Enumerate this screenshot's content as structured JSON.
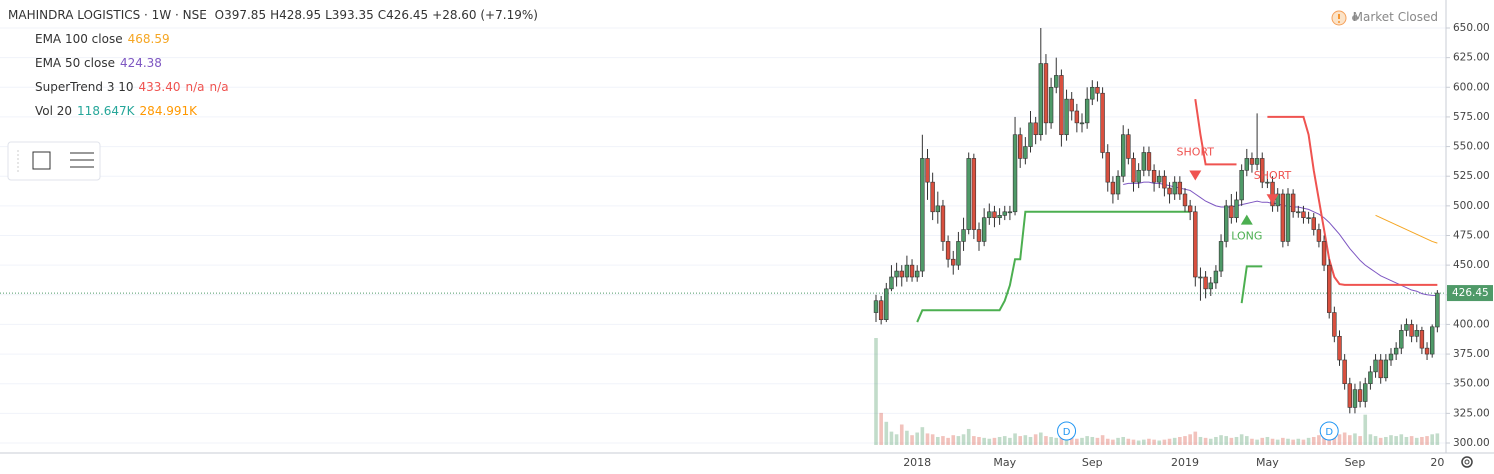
{
  "chart_data": {
    "type": "candlestick",
    "title": "MAHINDRA LOGISTICS · 1W · NSE",
    "ohlc_labels": [
      "O397.85",
      "H428.95",
      "L393.35",
      "C426.45",
      "+28.60 (+7.19%)"
    ],
    "status": "Market Closed",
    "indicators": [
      {
        "name": "EMA 100 close",
        "readings": [
          468.59
        ],
        "color": "#f5a623"
      },
      {
        "name": "EMA 50 close",
        "readings": [
          424.38
        ],
        "color": "#7e57c2"
      },
      {
        "name": "SuperTrend 3 10",
        "readings": [
          {
            "value": 433.4,
            "label": "433.40"
          },
          "n/a",
          "n/a"
        ],
        "color": "#ef5350"
      },
      {
        "name": "Vol 20",
        "readings": [
          "118.647K",
          "284.991K"
        ],
        "colors": [
          "#26a69a",
          "#ff9800"
        ]
      }
    ],
    "up_color": "#4f9a68",
    "down_color": "#d9503f",
    "ylim": [
      300,
      650
    ],
    "yticks": [
      {
        "value": 300,
        "label": "300.00"
      },
      {
        "value": 325,
        "label": "325.00"
      },
      {
        "value": 350,
        "label": "350.00"
      },
      {
        "value": 375,
        "label": "375.00"
      },
      {
        "value": 400,
        "label": "400.00"
      },
      {
        "value": 425,
        "label": "425.00"
      },
      {
        "value": 450,
        "label": "450.00"
      },
      {
        "value": 475,
        "label": "475.00"
      },
      {
        "value": 500,
        "label": "500.00"
      },
      {
        "value": 525,
        "label": "525.00"
      },
      {
        "value": 550,
        "label": "550.00"
      },
      {
        "value": 575,
        "label": "575.00"
      },
      {
        "value": 600,
        "label": "600.00"
      },
      {
        "value": 625,
        "label": "625.00"
      },
      {
        "value": 650,
        "label": "650.00"
      }
    ],
    "grid": true,
    "categories": [
      null,
      null,
      null,
      null,
      null,
      null,
      null,
      null,
      "2018",
      null,
      null,
      null,
      null,
      null,
      null,
      null,
      null,
      null,
      null,
      null,
      null,
      null,
      null,
      null,
      null,
      "May",
      null,
      null,
      null,
      null,
      null,
      null,
      null,
      null,
      null,
      null,
      null,
      null,
      null,
      null,
      null,
      null,
      "Sep",
      null,
      null,
      null,
      null,
      null,
      null,
      null,
      null,
      null,
      null,
      null,
      null,
      null,
      null,
      null,
      null,
      null,
      "2019",
      null,
      null,
      null,
      null,
      null,
      null,
      null,
      null,
      null,
      null,
      null,
      null,
      null,
      null,
      null,
      "May",
      null,
      null,
      null,
      null,
      null,
      null,
      null,
      null,
      null,
      null,
      null,
      null,
      null,
      null,
      null,
      null,
      "Sep",
      null,
      null,
      null,
      null,
      null,
      null,
      null,
      null,
      null,
      null,
      null,
      null,
      null,
      null,
      null,
      "20"
    ],
    "candles": [
      [
        410,
        425,
        402,
        420
      ],
      [
        420,
        424,
        400,
        404
      ],
      [
        404,
        435,
        402,
        430
      ],
      [
        430,
        450,
        428,
        440
      ],
      [
        440,
        452,
        432,
        445
      ],
      [
        445,
        450,
        432,
        440
      ],
      [
        440,
        458,
        436,
        450
      ],
      [
        450,
        455,
        436,
        440
      ],
      [
        440,
        450,
        436,
        445
      ],
      [
        445,
        560,
        440,
        540
      ],
      [
        540,
        548,
        505,
        520
      ],
      [
        520,
        528,
        488,
        495
      ],
      [
        495,
        512,
        485,
        500
      ],
      [
        500,
        505,
        462,
        470
      ],
      [
        470,
        475,
        448,
        455
      ],
      [
        455,
        462,
        442,
        450
      ],
      [
        450,
        478,
        446,
        470
      ],
      [
        470,
        490,
        462,
        480
      ],
      [
        480,
        545,
        476,
        540
      ],
      [
        540,
        544,
        472,
        480
      ],
      [
        480,
        486,
        462,
        470
      ],
      [
        470,
        498,
        466,
        490
      ],
      [
        490,
        502,
        484,
        495
      ],
      [
        495,
        500,
        482,
        490
      ],
      [
        490,
        498,
        484,
        492
      ],
      [
        492,
        500,
        488,
        495
      ],
      [
        495,
        500,
        488,
        495
      ],
      [
        495,
        575,
        492,
        560
      ],
      [
        560,
        566,
        532,
        540
      ],
      [
        540,
        558,
        535,
        550
      ],
      [
        550,
        580,
        545,
        570
      ],
      [
        570,
        575,
        552,
        560
      ],
      [
        560,
        650,
        555,
        620
      ],
      [
        620,
        628,
        560,
        570
      ],
      [
        570,
        608,
        565,
        600
      ],
      [
        600,
        625,
        595,
        610
      ],
      [
        610,
        615,
        550,
        560
      ],
      [
        560,
        598,
        555,
        590
      ],
      [
        590,
        596,
        572,
        580
      ],
      [
        580,
        586,
        562,
        570
      ],
      [
        570,
        578,
        562,
        570
      ],
      [
        570,
        600,
        565,
        590
      ],
      [
        590,
        606,
        585,
        600
      ],
      [
        600,
        605,
        588,
        595
      ],
      [
        595,
        600,
        540,
        545
      ],
      [
        545,
        552,
        512,
        520
      ],
      [
        520,
        525,
        502,
        510
      ],
      [
        510,
        530,
        505,
        525
      ],
      [
        525,
        568,
        520,
        560
      ],
      [
        560,
        565,
        535,
        540
      ],
      [
        540,
        545,
        512,
        520
      ],
      [
        520,
        536,
        515,
        530
      ],
      [
        530,
        550,
        525,
        545
      ],
      [
        545,
        550,
        525,
        530
      ],
      [
        530,
        535,
        512,
        520
      ],
      [
        520,
        530,
        515,
        525
      ],
      [
        525,
        530,
        508,
        515
      ],
      [
        515,
        520,
        502,
        510
      ],
      [
        510,
        525,
        505,
        520
      ],
      [
        520,
        525,
        505,
        510
      ],
      [
        510,
        515,
        495,
        500
      ],
      [
        500,
        505,
        488,
        495
      ],
      [
        495,
        500,
        432,
        440
      ],
      [
        440,
        448,
        420,
        440
      ],
      [
        440,
        445,
        422,
        430
      ],
      [
        430,
        440,
        424,
        435
      ],
      [
        435,
        450,
        430,
        445
      ],
      [
        445,
        476,
        440,
        470
      ],
      [
        470,
        505,
        465,
        500
      ],
      [
        500,
        510,
        485,
        490
      ],
      [
        490,
        512,
        486,
        505
      ],
      [
        505,
        535,
        500,
        530
      ],
      [
        530,
        548,
        525,
        540
      ],
      [
        540,
        545,
        528,
        535
      ],
      [
        535,
        578,
        530,
        540
      ],
      [
        540,
        545,
        515,
        520
      ],
      [
        520,
        528,
        515,
        520
      ],
      [
        520,
        525,
        495,
        500
      ],
      [
        500,
        515,
        495,
        510
      ],
      [
        510,
        514,
        465,
        470
      ],
      [
        470,
        515,
        466,
        510
      ],
      [
        510,
        514,
        490,
        495
      ],
      [
        495,
        500,
        490,
        495
      ],
      [
        495,
        500,
        485,
        490
      ],
      [
        490,
        495,
        485,
        490
      ],
      [
        490,
        494,
        475,
        480
      ],
      [
        480,
        485,
        465,
        470
      ],
      [
        470,
        475,
        445,
        450
      ],
      [
        450,
        455,
        405,
        410
      ],
      [
        410,
        415,
        385,
        390
      ],
      [
        390,
        395,
        365,
        370
      ],
      [
        370,
        375,
        345,
        350
      ],
      [
        350,
        355,
        325,
        330
      ],
      [
        330,
        350,
        325,
        345
      ],
      [
        345,
        352,
        330,
        335
      ],
      [
        335,
        355,
        330,
        350
      ],
      [
        350,
        365,
        345,
        360
      ],
      [
        360,
        375,
        355,
        370
      ],
      [
        370,
        375,
        350,
        355
      ],
      [
        355,
        375,
        352,
        370
      ],
      [
        370,
        380,
        365,
        375
      ],
      [
        375,
        385,
        370,
        380
      ],
      [
        380,
        400,
        375,
        395
      ],
      [
        395,
        405,
        390,
        400
      ],
      [
        400,
        404,
        385,
        390
      ],
      [
        390,
        400,
        385,
        395
      ],
      [
        395,
        398,
        375,
        380
      ],
      [
        380,
        385,
        370,
        375
      ],
      [
        375,
        400,
        372,
        398
      ],
      [
        397.85,
        428.95,
        393.35,
        426.45
      ]
    ],
    "volume": [
      1200,
      360,
      260,
      150,
      120,
      230,
      160,
      110,
      140,
      200,
      130,
      120,
      90,
      100,
      80,
      110,
      100,
      120,
      180,
      100,
      90,
      80,
      70,
      80,
      90,
      100,
      80,
      130,
      100,
      110,
      90,
      120,
      140,
      100,
      90,
      80,
      100,
      90,
      80,
      70,
      80,
      100,
      90,
      80,
      110,
      70,
      60,
      80,
      90,
      70,
      60,
      50,
      60,
      70,
      60,
      50,
      60,
      70,
      80,
      90,
      100,
      120,
      150,
      90,
      80,
      70,
      90,
      110,
      100,
      80,
      90,
      120,
      100,
      70,
      60,
      80,
      90,
      70,
      60,
      80,
      70,
      60,
      70,
      60,
      80,
      90,
      110,
      100,
      150,
      130,
      120,
      140,
      110,
      130,
      100,
      340,
      120,
      100,
      80,
      90,
      110,
      100,
      120,
      90,
      100,
      80,
      90,
      100,
      120,
      130
    ],
    "series": [
      {
        "name": "EMA 100 close",
        "color": "#f5a623",
        "values": [
          null,
          null,
          null,
          null,
          null,
          null,
          null,
          null,
          null,
          null,
          null,
          null,
          null,
          null,
          null,
          null,
          null,
          null,
          null,
          null,
          null,
          null,
          null,
          null,
          null,
          null,
          null,
          null,
          null,
          null,
          null,
          null,
          null,
          null,
          null,
          null,
          null,
          null,
          null,
          null,
          null,
          null,
          null,
          null,
          null,
          null,
          null,
          null,
          null,
          null,
          null,
          null,
          null,
          null,
          null,
          null,
          null,
          null,
          null,
          null,
          null,
          null,
          null,
          null,
          null,
          null,
          null,
          null,
          null,
          null,
          null,
          null,
          null,
          null,
          null,
          null,
          null,
          null,
          null,
          null,
          null,
          null,
          null,
          null,
          null,
          null,
          null,
          null,
          null,
          null,
          null,
          null,
          null,
          null,
          null,
          null,
          null,
          492,
          490,
          488,
          486,
          484,
          482,
          480,
          478,
          476,
          474,
          472,
          470,
          468.59
        ]
      },
      {
        "name": "EMA 50 close",
        "color": "#7e57c2",
        "values": [
          null,
          null,
          null,
          null,
          null,
          null,
          null,
          null,
          null,
          null,
          null,
          null,
          null,
          null,
          null,
          null,
          null,
          null,
          null,
          null,
          null,
          null,
          null,
          null,
          null,
          null,
          null,
          null,
          null,
          null,
          null,
          null,
          null,
          null,
          null,
          null,
          null,
          null,
          null,
          null,
          null,
          null,
          null,
          null,
          null,
          null,
          null,
          null,
          518,
          519,
          519,
          519,
          520,
          520,
          519,
          519,
          518,
          517,
          516,
          515,
          514,
          513,
          510,
          507,
          504,
          502,
          500,
          499,
          499,
          499,
          500,
          501,
          502,
          503,
          504,
          503,
          503,
          502,
          502,
          500,
          500,
          499,
          499,
          498,
          497,
          495,
          493,
          490,
          486,
          481,
          476,
          470,
          464,
          459,
          454,
          450,
          447,
          444,
          441,
          439,
          437,
          435,
          433,
          431,
          429,
          428,
          426,
          425,
          424.5,
          424.38
        ]
      },
      {
        "name": "SuperTrend 3 10",
        "color": "#4caf50",
        "values": [
          null,
          null,
          null,
          null,
          null,
          null,
          null,
          null,
          402,
          412,
          412,
          412,
          412,
          412,
          412,
          412,
          412,
          412,
          412,
          412,
          412,
          412,
          412,
          412,
          412,
          420,
          433,
          455,
          455,
          495,
          495,
          495,
          495,
          495,
          495,
          495,
          495,
          495,
          495,
          495,
          495,
          495,
          495,
          495,
          495,
          495,
          495,
          495,
          495,
          495,
          495,
          495,
          495,
          495,
          495,
          495,
          495,
          495,
          495,
          495,
          495,
          495,
          null,
          null,
          null,
          null,
          null,
          null,
          null,
          null,
          null,
          418,
          449,
          449,
          449,
          449,
          null,
          null,
          null,
          null,
          null,
          null,
          null,
          null,
          null,
          null,
          null,
          null,
          null,
          null,
          null,
          null,
          null,
          null,
          null,
          null,
          null,
          null,
          null,
          null,
          null,
          null,
          null,
          null,
          null,
          null,
          null,
          null,
          null,
          null
        ]
      },
      {
        "name": "SuperTrend 3 10",
        "color": "#ef5350",
        "values": [
          null,
          null,
          null,
          null,
          null,
          null,
          null,
          null,
          null,
          null,
          null,
          null,
          null,
          null,
          null,
          null,
          null,
          null,
          null,
          null,
          null,
          null,
          null,
          null,
          null,
          null,
          null,
          null,
          null,
          null,
          null,
          null,
          null,
          null,
          null,
          null,
          null,
          null,
          null,
          null,
          null,
          null,
          null,
          null,
          null,
          null,
          null,
          null,
          null,
          null,
          null,
          null,
          null,
          null,
          null,
          null,
          null,
          null,
          null,
          null,
          null,
          null,
          590,
          560,
          535,
          535,
          535,
          535,
          535,
          535,
          535,
          null,
          null,
          null,
          null,
          null,
          575,
          575,
          575,
          575,
          575,
          575,
          575,
          575,
          560,
          530,
          505,
          480,
          455,
          440,
          434,
          433.4,
          433.4,
          433.4,
          433.4,
          433.4,
          433.4,
          433.4,
          433.4,
          433.4,
          433.4,
          433.4,
          433.4,
          433.4,
          433.4,
          433.4,
          433.4,
          433.4,
          433.4,
          433.4
        ]
      }
    ],
    "annotations": [
      {
        "text": "SHORT",
        "x": 62,
        "y": 545,
        "color": "#ef5350"
      },
      {
        "text": "LONG",
        "x": 72,
        "y": 474,
        "color": "#4caf50"
      },
      {
        "text": "SHORT",
        "x": 77,
        "y": 525,
        "color": "#ef5350"
      }
    ],
    "events": [
      {
        "label": "D",
        "x": 37
      },
      {
        "label": "D",
        "x": 88
      }
    ]
  }
}
